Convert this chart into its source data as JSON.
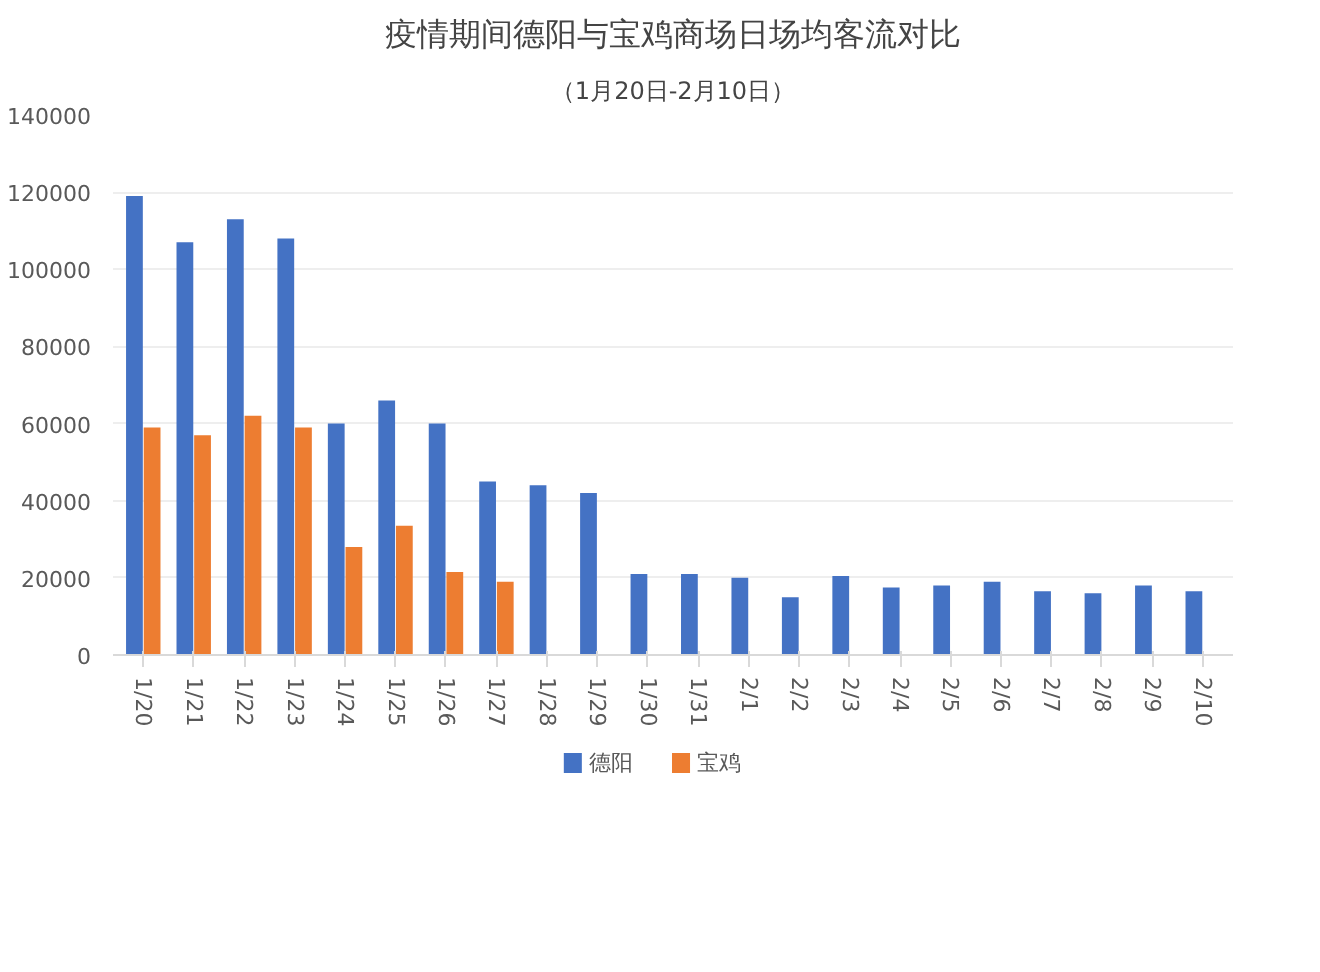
{
  "chart_data": {
    "type": "bar",
    "title": "疫情期间德阳与宝鸡商场日场均客流对比",
    "subtitle": "（1月20日-2月10日）",
    "categories": [
      "1/20",
      "1/21",
      "1/22",
      "1/23",
      "1/24",
      "1/25",
      "1/26",
      "1/27",
      "1/28",
      "1/29",
      "1/30",
      "1/31",
      "2/1",
      "2/2",
      "2/3",
      "2/4",
      "2/5",
      "2/6",
      "2/7",
      "2/8",
      "2/9",
      "2/10"
    ],
    "series": [
      {
        "name": "德阳",
        "color": "#4472c4",
        "values": [
          119000,
          107000,
          113000,
          108000,
          60000,
          66000,
          60000,
          45000,
          44000,
          42000,
          21000,
          21000,
          20000,
          15000,
          20500,
          17500,
          18000,
          19000,
          16500,
          16000,
          18000,
          16500
        ]
      },
      {
        "name": "宝鸡",
        "color": "#ed7d31",
        "values": [
          59000,
          57000,
          62000,
          59000,
          28000,
          33500,
          21500,
          19000,
          null,
          null,
          null,
          null,
          null,
          null,
          null,
          null,
          null,
          null,
          null,
          null,
          null,
          null
        ]
      }
    ],
    "ylim": [
      0,
      140000
    ],
    "yticks": [
      0,
      20000,
      40000,
      60000,
      80000,
      100000,
      120000,
      140000
    ],
    "grid": "y",
    "legend": "bottom"
  }
}
